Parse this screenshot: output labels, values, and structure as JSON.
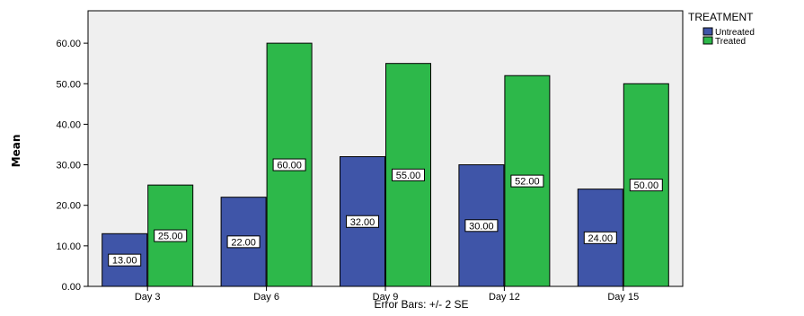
{
  "chart_data": {
    "type": "bar",
    "categories": [
      "Day 3",
      "Day 6",
      "Day 9",
      "Day 12",
      "Day 15"
    ],
    "series": [
      {
        "name": "Untreated",
        "values": [
          13,
          22,
          32,
          30,
          24
        ],
        "color": "#3f55a8",
        "labels": [
          "13.00",
          "22.00",
          "32.00",
          "30.00",
          "24.00"
        ]
      },
      {
        "name": "Treated",
        "values": [
          25,
          60,
          55,
          52,
          50
        ],
        "color": "#2db84a",
        "labels": [
          "25.00",
          "60.00",
          "55.00",
          "52.00",
          "50.00"
        ]
      }
    ],
    "yticks": [
      "0.00",
      "10.00",
      "20.00",
      "30.00",
      "40.00",
      "50.00",
      "60.00"
    ],
    "ylim": [
      0,
      68
    ],
    "ylabel": "Mean",
    "xlabel": "Error Bars: +/- 2 SE",
    "legend_title": "TREATMENT",
    "legend_position": "top-right",
    "grid": false,
    "plot_background": "#efefef"
  }
}
